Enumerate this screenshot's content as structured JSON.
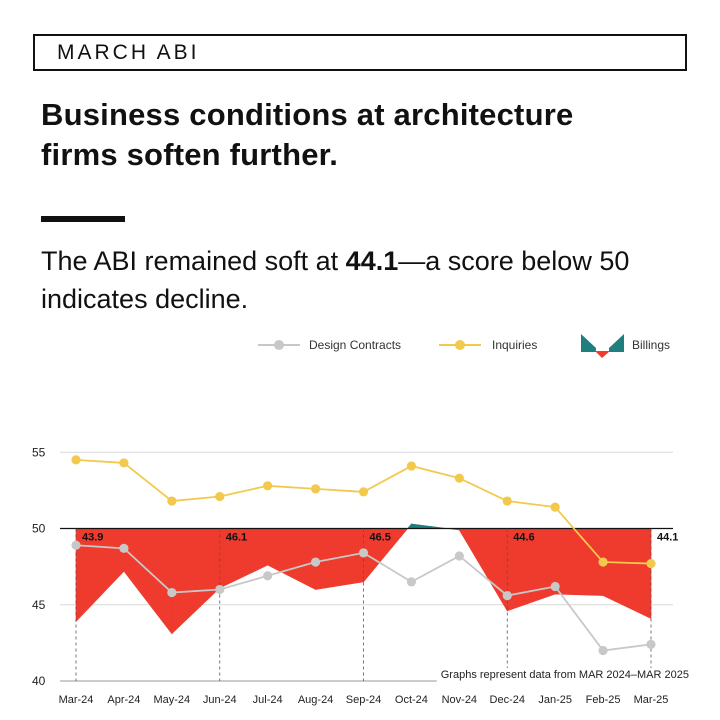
{
  "kicker": "MARCH ABI",
  "headline_line1": "Business conditions at architecture",
  "headline_line2": "firms soften further.",
  "dek": {
    "pre": "The ABI remained soft at ",
    "value": "44.1",
    "post": "—a score below 50 indicates decline."
  },
  "colors": {
    "contracts": "#c8c8c8",
    "inquiries": "#f2c94c",
    "billings_down": "#ee3b2e",
    "billings_up": "#1f7f7f"
  },
  "chart_data": {
    "type": "line",
    "categories": [
      "Mar-24",
      "Apr-24",
      "May-24",
      "Jun-24",
      "Jul-24",
      "Aug-24",
      "Sep-24",
      "Oct-24",
      "Nov-24",
      "Dec-24",
      "Jan-25",
      "Feb-25",
      "Mar-25"
    ],
    "ylim": [
      40,
      56
    ],
    "yticks": [
      40,
      45,
      50,
      55
    ],
    "baseline": 50,
    "legend": [
      "Design Contracts",
      "Inquiries",
      "Billings"
    ],
    "series": [
      {
        "name": "Design Contracts",
        "values": [
          48.9,
          48.7,
          45.8,
          46.0,
          46.9,
          47.8,
          48.4,
          46.5,
          48.2,
          45.6,
          46.2,
          42.0,
          42.4
        ]
      },
      {
        "name": "Inquiries",
        "values": [
          54.5,
          54.3,
          51.8,
          52.1,
          52.8,
          52.6,
          52.4,
          54.1,
          53.3,
          51.8,
          51.4,
          47.8,
          47.7
        ]
      },
      {
        "name": "Billings",
        "values": [
          43.9,
          47.2,
          43.1,
          46.1,
          47.6,
          46.0,
          46.5,
          50.3,
          49.9,
          44.6,
          45.7,
          45.6,
          44.1
        ]
      }
    ],
    "labels": [
      {
        "index": 0,
        "text": "43.9"
      },
      {
        "index": 3,
        "text": "46.1"
      },
      {
        "index": 6,
        "text": "46.5"
      },
      {
        "index": 9,
        "text": "44.6"
      },
      {
        "index": 12,
        "text": "44.1"
      }
    ],
    "note": "Graphs represent data from MAR 2024–MAR 2025"
  }
}
